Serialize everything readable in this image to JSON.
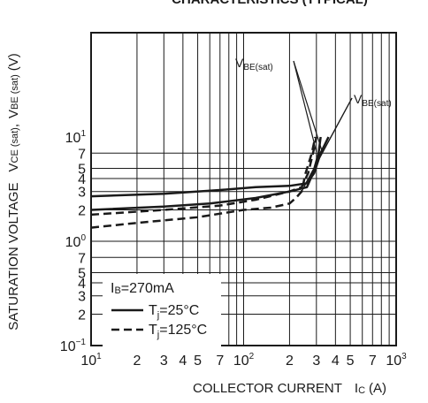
{
  "chart_data": {
    "type": "line",
    "title": "CHARACTERISTICS (TYPICAL)",
    "xlabel": {
      "main": "COLLECTOR CURRENT",
      "symbol": "I",
      "sub": "C",
      "unit": "(A)"
    },
    "ylabel": {
      "prefix": "SATURATION VOLTAGE",
      "v1": "V",
      "s1": "CE (sat)",
      "sep": ",",
      "v2": "V",
      "s2": "BE (sat)",
      "unit": "(V)"
    },
    "x_scale": "log",
    "y_scale": "log",
    "xlim": [
      0.1,
      10
    ],
    "ylim": [
      0.01,
      10
    ],
    "grid": true,
    "x_ticks": [
      {
        "value": 0.1,
        "base": "10",
        "sup": "1"
      },
      {
        "value": 0.2,
        "label": "2"
      },
      {
        "value": 0.3,
        "label": "3"
      },
      {
        "value": 0.4,
        "label": "4"
      },
      {
        "value": 0.5,
        "label": "5"
      },
      {
        "value": 0.7,
        "label": "7"
      },
      {
        "value": 1,
        "base": "10",
        "sup": "2"
      },
      {
        "value": 2,
        "label": "2"
      },
      {
        "value": 3,
        "label": "3"
      },
      {
        "value": 4,
        "label": "4"
      },
      {
        "value": 5,
        "label": "5"
      },
      {
        "value": 7,
        "label": "7"
      },
      {
        "value": 10,
        "base": "10",
        "sup": "3"
      }
    ],
    "y_ticks": [
      {
        "value": 0.01,
        "base": "10",
        "sup": "−1"
      },
      {
        "value": 0.02,
        "label": "2"
      },
      {
        "value": 0.03,
        "label": "3"
      },
      {
        "value": 0.04,
        "label": "4"
      },
      {
        "value": 0.05,
        "label": "5"
      },
      {
        "value": 0.07,
        "label": "7"
      },
      {
        "value": 0.1,
        "base": "10",
        "sup": "0"
      },
      {
        "value": 0.2,
        "label": "2"
      },
      {
        "value": 0.3,
        "label": "3"
      },
      {
        "value": 0.4,
        "label": "4"
      },
      {
        "value": 0.5,
        "label": "5"
      },
      {
        "value": 0.7,
        "label": "7"
      },
      {
        "value": 1,
        "base": "10",
        "sup": "1"
      }
    ],
    "x_grid": [
      0.2,
      0.3,
      0.4,
      0.5,
      0.6,
      0.7,
      0.8,
      0.9,
      1,
      2,
      3,
      4,
      5,
      6,
      7,
      8,
      9
    ],
    "y_grid": [
      0.02,
      0.03,
      0.04,
      0.05,
      0.07,
      0.1,
      0.2,
      0.3,
      0.4,
      0.5,
      0.7
    ],
    "series": [
      {
        "group": "BE",
        "style": "solid",
        "points": [
          [
            0.1,
            0.27
          ],
          [
            0.3,
            0.285
          ],
          [
            0.7,
            0.31
          ],
          [
            1.2,
            0.33
          ],
          [
            2,
            0.34
          ],
          [
            2.6,
            0.36
          ],
          [
            2.9,
            0.45
          ],
          [
            3.2,
            0.7
          ],
          [
            3.6,
            1.0
          ]
        ]
      },
      {
        "group": "BE",
        "style": "dashed",
        "points": [
          [
            0.1,
            0.18
          ],
          [
            0.3,
            0.2
          ],
          [
            0.7,
            0.22
          ],
          [
            1.2,
            0.25
          ],
          [
            2,
            0.3
          ],
          [
            2.4,
            0.33
          ],
          [
            2.65,
            0.45
          ],
          [
            2.85,
            0.7
          ],
          [
            3.0,
            1.0
          ]
        ]
      },
      {
        "group": "CE",
        "style": "solid",
        "points": [
          [
            0.1,
            0.2
          ],
          [
            0.3,
            0.215
          ],
          [
            0.6,
            0.23
          ],
          [
            1.2,
            0.26
          ],
          [
            2,
            0.3
          ],
          [
            2.6,
            0.33
          ],
          [
            2.85,
            0.45
          ],
          [
            3.1,
            0.7
          ],
          [
            3.2,
            1.0
          ]
        ]
      },
      {
        "group": "CE",
        "style": "dashed",
        "points": [
          [
            0.1,
            0.135
          ],
          [
            0.2,
            0.15
          ],
          [
            0.5,
            0.17
          ],
          [
            1,
            0.2
          ],
          [
            1.5,
            0.21
          ],
          [
            2,
            0.23
          ],
          [
            2.2,
            0.26
          ],
          [
            2.4,
            0.3
          ],
          [
            2.55,
            0.45
          ],
          [
            2.8,
            0.7
          ],
          [
            2.95,
            1.0
          ]
        ]
      }
    ],
    "annotations": [
      {
        "main": "V",
        "sub": "BE(sat)"
      },
      {
        "main": "V",
        "sub": "BE(sat)"
      }
    ],
    "legend": {
      "placement": "bottom-left",
      "header": {
        "main": "I",
        "sub": "B",
        "rest": "=270mA"
      },
      "entries": [
        {
          "style": "solid",
          "main": "T",
          "sub": "j",
          "rest": "=25°C"
        },
        {
          "style": "dashed",
          "main": "T",
          "sub": "j",
          "rest": "=125°C"
        }
      ]
    }
  }
}
